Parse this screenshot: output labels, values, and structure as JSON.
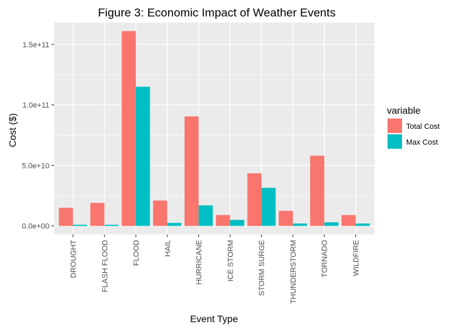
{
  "chart_data": {
    "type": "bar",
    "title": "Figure 3: Economic Impact of Weather Events",
    "xlabel": "Event Type",
    "ylabel": "Cost ($)",
    "categories": [
      "DROUGHT",
      "FLASH FLOOD",
      "FLOOD",
      "HAIL",
      "HURRICANE",
      "ICE STORM",
      "STORM SURGE",
      "THUNDERSTORM",
      "TORNADO",
      "WILDFIRE"
    ],
    "series": [
      {
        "name": "Total Cost",
        "color": "#F8766D",
        "values": [
          15000000000,
          19000000000,
          161000000000,
          21000000000,
          90500000000,
          9000000000,
          43500000000,
          12500000000,
          58000000000,
          9000000000
        ]
      },
      {
        "name": "Max Cost",
        "color": "#00BFC4",
        "values": [
          1000000000,
          1000000000,
          115000000000,
          2500000000,
          17000000000,
          5000000000,
          31500000000,
          2000000000,
          3000000000,
          2000000000
        ]
      }
    ],
    "ylim": [
      -7000000000,
      168000000000
    ],
    "yticks": [
      0,
      50000000000,
      100000000000,
      150000000000
    ],
    "ytick_labels": [
      "0.0e+00",
      "5.0e+10",
      "1.0e+11",
      "1.5e+11"
    ],
    "legend": {
      "title": "variable",
      "position": "right"
    },
    "grid": true,
    "panel_background": "#EBEBEB"
  }
}
